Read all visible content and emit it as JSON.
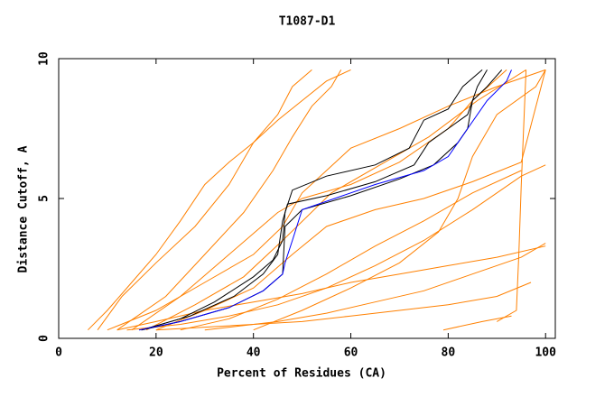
{
  "chart_data": {
    "type": "line",
    "title": "T1087-D1",
    "x_label": "Percent of Residues (CA)",
    "y_label": "Distance Cutoff, A",
    "xlim": [
      0,
      102
    ],
    "ylim": [
      0,
      10
    ],
    "xticks": [
      0,
      20,
      40,
      60,
      80,
      100
    ],
    "yticks": [
      0,
      5,
      10
    ],
    "series": [
      {
        "color": "#ff8000",
        "x": [
          6,
          10,
          15,
          20,
          25,
          30,
          35,
          40,
          45,
          50,
          55,
          60
        ],
        "values": [
          0.3,
          1,
          2,
          3,
          4.2,
          5.5,
          6.3,
          7,
          7.8,
          8.5,
          9.2,
          9.6
        ]
      },
      {
        "color": "#ff8000",
        "x": [
          8,
          13,
          20,
          28,
          35,
          40,
          45,
          48,
          52
        ],
        "values": [
          0.3,
          1.5,
          2.7,
          4,
          5.5,
          7,
          8,
          9,
          9.6
        ]
      },
      {
        "color": "#ff8000",
        "x": [
          12,
          20,
          30,
          40,
          50,
          60,
          70,
          80,
          90,
          100
        ],
        "values": [
          0.3,
          0.6,
          1,
          1.3,
          1.6,
          2,
          2.3,
          2.6,
          2.9,
          3.3
        ]
      },
      {
        "color": "#ff8000",
        "x": [
          14,
          25,
          35,
          45,
          55,
          65,
          75,
          85,
          95,
          100
        ],
        "values": [
          0.3,
          0.5,
          0.8,
          1.2,
          1.8,
          2.6,
          3.5,
          4.6,
          5.8,
          6.2
        ]
      },
      {
        "color": "#ff8000",
        "x": [
          20,
          30,
          40,
          50,
          60,
          70,
          80,
          90,
          97
        ],
        "values": [
          0.3,
          0.4,
          0.5,
          0.6,
          0.8,
          1,
          1.2,
          1.5,
          2
        ]
      },
      {
        "color": "#ff8000",
        "x": [
          10,
          20,
          30,
          40,
          46,
          50,
          55,
          60,
          70,
          80,
          90,
          100
        ],
        "values": [
          0.3,
          1,
          2,
          3,
          4,
          5.2,
          6,
          6.8,
          7.5,
          8.3,
          9,
          9.6
        ]
      },
      {
        "color": "#ff8000",
        "x": [
          15,
          25,
          35,
          45,
          50,
          60,
          70,
          80,
          85,
          92
        ],
        "values": [
          0.3,
          1.5,
          3,
          4.5,
          5,
          5.5,
          6.3,
          7.5,
          8.5,
          9.6
        ]
      },
      {
        "color": "#ff8000",
        "x": [
          20,
          30,
          40,
          48,
          55,
          65,
          75,
          85,
          95,
          100
        ],
        "values": [
          0.3,
          1,
          1.8,
          3,
          4,
          4.6,
          5,
          5.6,
          6.3,
          9.6
        ]
      },
      {
        "color": "#ff8000",
        "x": [
          25,
          35,
          45,
          55,
          65,
          75,
          85,
          95
        ],
        "values": [
          0.3,
          0.7,
          1.4,
          2.3,
          3.3,
          4.2,
          5.2,
          6
        ]
      },
      {
        "color": "#ff8000",
        "x": [
          30,
          45,
          55,
          65,
          75,
          85,
          95,
          100
        ],
        "values": [
          0.3,
          0.6,
          0.9,
          1.3,
          1.7,
          2.3,
          2.9,
          3.4
        ]
      },
      {
        "color": "#ff8000",
        "x": [
          12,
          22,
          30,
          38,
          44,
          48,
          52,
          56,
          58
        ],
        "values": [
          0.3,
          1.5,
          3,
          4.5,
          6,
          7.2,
          8.3,
          9,
          9.6
        ]
      },
      {
        "color": "#ff8000",
        "x": [
          40,
          50,
          60,
          70,
          78,
          82,
          85,
          90,
          98,
          100
        ],
        "values": [
          0.3,
          1,
          1.8,
          2.7,
          3.8,
          5,
          6.5,
          8,
          9,
          9.6
        ]
      },
      {
        "color": "#ff8000",
        "x": [
          79,
          87,
          93
        ],
        "values": [
          0.3,
          0.6,
          0.8
        ]
      },
      {
        "color": "#ff8000",
        "x": [
          90,
          94,
          94.5,
          95,
          96
        ],
        "values": [
          0.6,
          1,
          3,
          5.5,
          9.6
        ]
      },
      {
        "color": "#ff8000",
        "x": [
          18,
          28,
          38,
          46,
          56,
          66,
          76,
          86,
          96
        ],
        "values": [
          0.3,
          1.2,
          2.2,
          3.5,
          5.2,
          6.2,
          7.2,
          8.5,
          9.6
        ]
      },
      {
        "color": "#000000",
        "x": [
          17,
          25,
          32,
          40,
          44,
          46,
          46.5,
          48,
          55,
          65,
          72,
          75,
          80,
          83,
          87
        ],
        "values": [
          0.3,
          0.7,
          1.3,
          2.2,
          2.8,
          3.5,
          4.5,
          5.3,
          5.8,
          6.2,
          6.8,
          7.8,
          8.2,
          9,
          9.6
        ]
      },
      {
        "color": "#000000",
        "x": [
          17,
          27,
          36,
          42,
          45,
          46,
          47,
          55,
          65,
          73,
          76,
          80,
          84,
          86,
          88
        ],
        "values": [
          0.3,
          0.8,
          1.5,
          2.3,
          3,
          4.2,
          4.8,
          5.1,
          5.6,
          6.2,
          7,
          7.5,
          8,
          9,
          9.6
        ]
      },
      {
        "color": "#000000",
        "x": [
          17,
          25,
          35,
          42,
          46,
          46.5,
          50,
          60,
          70,
          77,
          82,
          84,
          85,
          88,
          91
        ],
        "values": [
          0.3,
          0.6,
          1.1,
          1.7,
          2.3,
          4,
          4.6,
          5.1,
          5.7,
          6.2,
          7,
          7.5,
          8.5,
          9,
          9.6
        ]
      },
      {
        "color": "#0000ff",
        "x": [
          16.5,
          25,
          35,
          42,
          46,
          46.5,
          48,
          50,
          55,
          65,
          75,
          80,
          84,
          88,
          92,
          93
        ],
        "values": [
          0.3,
          0.6,
          1.1,
          1.7,
          2.3,
          2.7,
          3.5,
          4.6,
          4.9,
          5.5,
          6,
          6.5,
          7.5,
          8.5,
          9.2,
          9.6
        ]
      }
    ]
  }
}
